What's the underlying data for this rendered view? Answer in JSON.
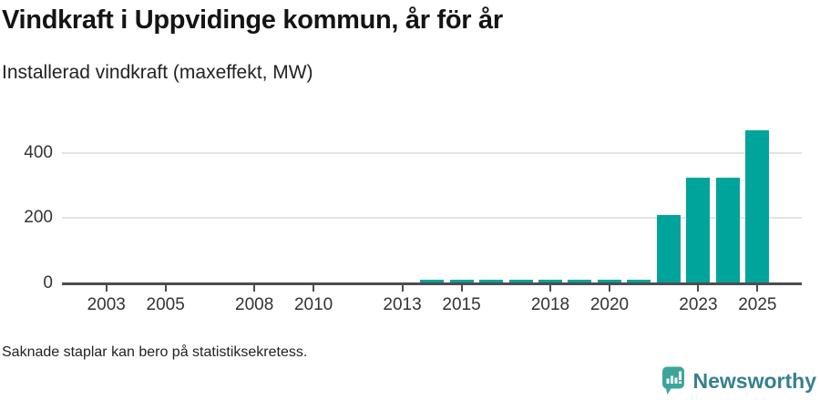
{
  "header": {
    "title": "Vindkraft i Uppvidinge kommun, år för år",
    "subtitle": "Installerad vindkraft (maxeffekt, MW)"
  },
  "chart_data": {
    "type": "bar",
    "title": "Vindkraft i Uppvidinge kommun, år för år",
    "subtitle": "Installerad vindkraft (maxeffekt, MW)",
    "ylabel": "",
    "xlabel": "",
    "unit": "MW",
    "x_domain": [
      2002,
      2026
    ],
    "x_tick_labels": [
      "2003",
      "2005",
      "2008",
      "2010",
      "2013",
      "2015",
      "2018",
      "2020",
      "2023",
      "2025"
    ],
    "y_ticks": [
      0,
      200,
      400
    ],
    "ylim": [
      0,
      505
    ],
    "grid": "horizontal",
    "legend": "none",
    "bar_color": "#00a49a",
    "series": [
      {
        "name": "Installerad vindkraft (maxeffekt, MW)",
        "points": [
          {
            "year": 2014,
            "value": 11
          },
          {
            "year": 2015,
            "value": 11
          },
          {
            "year": 2016,
            "value": 11
          },
          {
            "year": 2017,
            "value": 11
          },
          {
            "year": 2018,
            "value": 11
          },
          {
            "year": 2019,
            "value": 11
          },
          {
            "year": 2020,
            "value": 11
          },
          {
            "year": 2021,
            "value": 11
          },
          {
            "year": 2022,
            "value": 208
          },
          {
            "year": 2023,
            "value": 325
          },
          {
            "year": 2024,
            "value": 325
          },
          {
            "year": 2025,
            "value": 470
          }
        ]
      }
    ]
  },
  "footer": {
    "note": "Saknade staplar kan bero på statistiksekretess."
  },
  "branding": {
    "name": "Newsworthy",
    "icon": "newsworthy-bubble-chart-icon",
    "icon_color": "#3ba59c",
    "text_color": "#35808e"
  },
  "colors": {
    "bar": "#00a49a",
    "axis": "#4d4d4d",
    "gridline": "#e3e3e3",
    "tick_text": "#333333",
    "title_text": "#141414"
  }
}
